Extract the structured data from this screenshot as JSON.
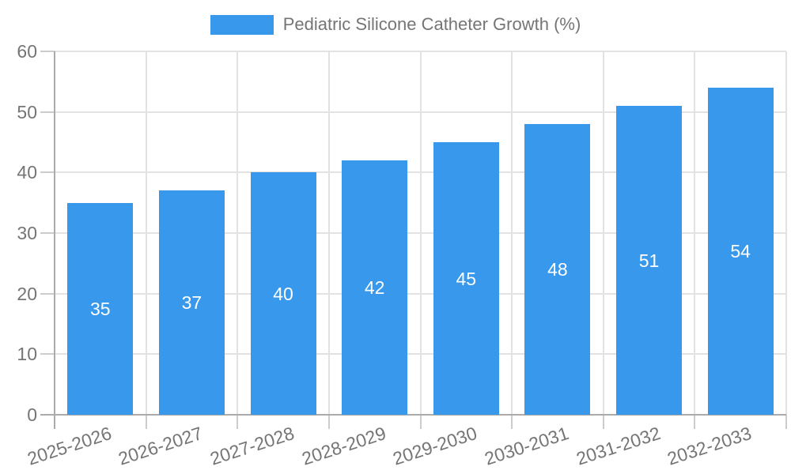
{
  "legend": {
    "label": "Pediatric Silicone Catheter Growth (%)"
  },
  "chart_data": {
    "type": "bar",
    "title": "Pediatric Silicone Catheter Growth (%)",
    "categories": [
      "2025-2026",
      "2026-2027",
      "2027-2028",
      "2028-2029",
      "2029-2030",
      "2030-2031",
      "2031-2032",
      "2032-2033"
    ],
    "values": [
      35,
      37,
      40,
      42,
      45,
      48,
      51,
      54
    ],
    "xlabel": "",
    "ylabel": "",
    "ylim": [
      0,
      60
    ],
    "yticks": [
      0,
      10,
      20,
      30,
      40,
      50,
      60
    ],
    "grid": true,
    "legend_position": "top-center",
    "value_labels_position": "inside-middle",
    "x_label_rotation_deg": -18
  },
  "colors": {
    "bar": "#3899ec",
    "value_label": "#ffffff",
    "tick_label": "#757575",
    "legend_text": "#757575",
    "gridline": "#e2e2e2",
    "axis": "#ababab",
    "tick_mark": "#cccccc",
    "background": "#ffffff"
  }
}
